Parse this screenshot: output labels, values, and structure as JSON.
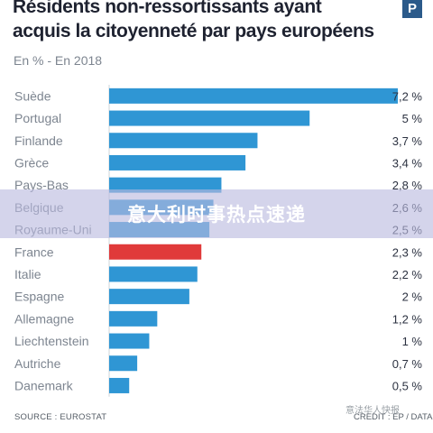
{
  "header": {
    "title": "Résidents non-ressortissants ayant acquis la citoyenneté par pays européens",
    "logo_text": "P"
  },
  "chart_data": {
    "type": "bar",
    "orientation": "horizontal",
    "subtitle": "En % - En 2018",
    "categories": [
      "Suède",
      "Portugal",
      "Finlande",
      "Grèce",
      "Pays-Bas",
      "Belgique",
      "Royaume-Uni",
      "France",
      "Italie",
      "Espagne",
      "Allemagne",
      "Liechtenstein",
      "Autriche",
      "Danemark"
    ],
    "values": [
      7.2,
      5,
      3.7,
      3.4,
      2.8,
      2.6,
      2.5,
      2.3,
      2.2,
      2,
      1.2,
      1,
      0.7,
      0.5
    ],
    "value_labels": [
      "7,2 %",
      "5 %",
      "3,7 %",
      "3,4 %",
      "2,8 %",
      "2,6 %",
      "2,5 %",
      "2,3 %",
      "2,2 %",
      "2 %",
      "1,2 %",
      "1 %",
      "0,7 %",
      "0,5 %"
    ],
    "highlight_category": "France",
    "colors": {
      "bar": "#2f96d4",
      "highlight": "#e03a3a",
      "label": "#7d8590",
      "value": "#2b3140",
      "axis": "#cfd4da"
    },
    "xlim": [
      0,
      7.2
    ],
    "grid": false,
    "legend": "none"
  },
  "footer": {
    "source": "SOURCE : EUROSTAT",
    "credit": "CREDIT : EP / DATA",
    "watermark_small": "意法华人快报"
  },
  "overlay": {
    "text": "意大利时事热点速递"
  }
}
